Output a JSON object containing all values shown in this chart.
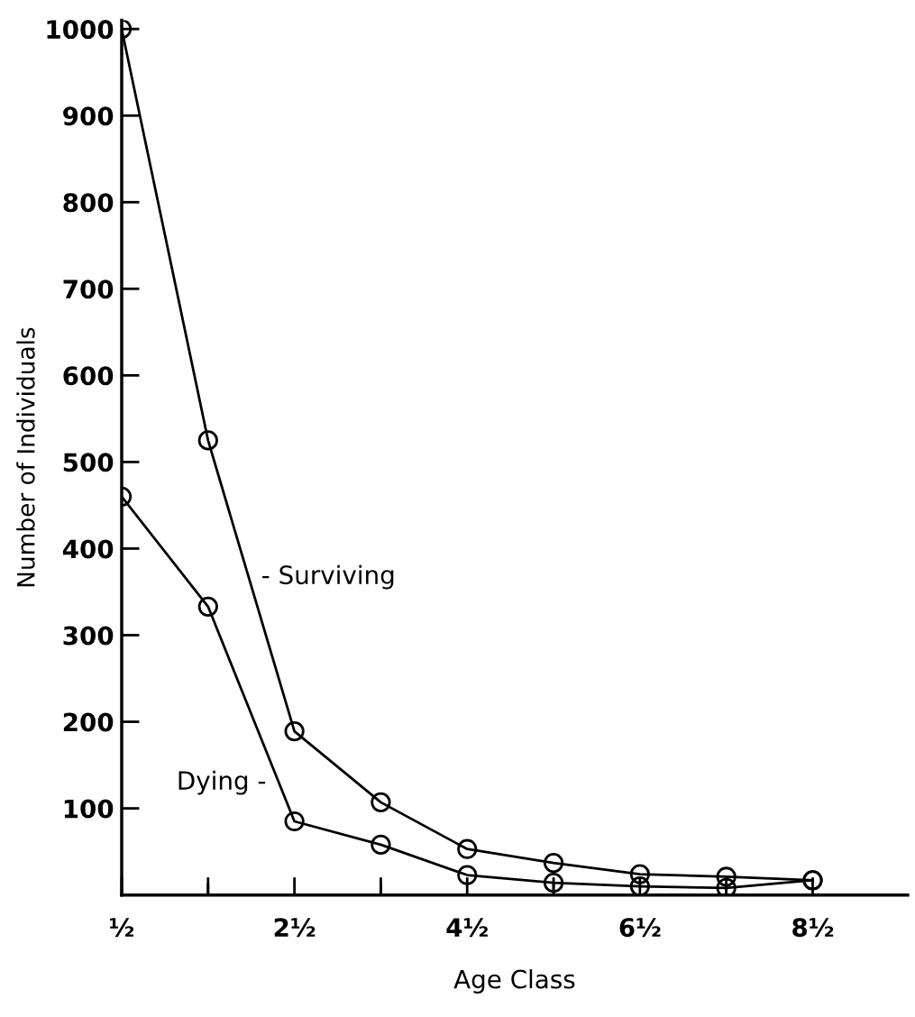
{
  "chart_data": {
    "type": "line",
    "xlabel": "Age Class",
    "ylabel": "Number of Individuals",
    "x": [
      0.5,
      1.5,
      2.5,
      3.5,
      4.5,
      5.5,
      6.5,
      7.5,
      8.5
    ],
    "series": [
      {
        "name": "- Surviving",
        "color": "#000000",
        "values": [
          1000,
          525,
          189,
          107,
          53,
          37,
          24,
          21,
          17
        ]
      },
      {
        "name": "Dying -",
        "color": "#000000",
        "values": [
          460,
          333,
          85,
          58,
          23,
          14,
          10,
          8,
          17
        ]
      }
    ],
    "xlim": [
      0.5,
      9.6
    ],
    "xticks": [
      {
        "value": 0.5,
        "label": "½"
      },
      {
        "value": 1.5,
        "label": null
      },
      {
        "value": 2.5,
        "label": "2½"
      },
      {
        "value": 3.5,
        "label": null
      },
      {
        "value": 4.5,
        "label": "4½"
      },
      {
        "value": 5.5,
        "label": null
      },
      {
        "value": 6.5,
        "label": "6½"
      },
      {
        "value": 7.5,
        "label": null
      },
      {
        "value": 8.5,
        "label": "8½"
      }
    ],
    "ylim": [
      0,
      1010
    ],
    "yticks": [
      100,
      200,
      300,
      400,
      500,
      600,
      700,
      800,
      900,
      1000
    ],
    "marker": "circle",
    "line_style": "solid",
    "grid": false,
    "legend": false
  }
}
